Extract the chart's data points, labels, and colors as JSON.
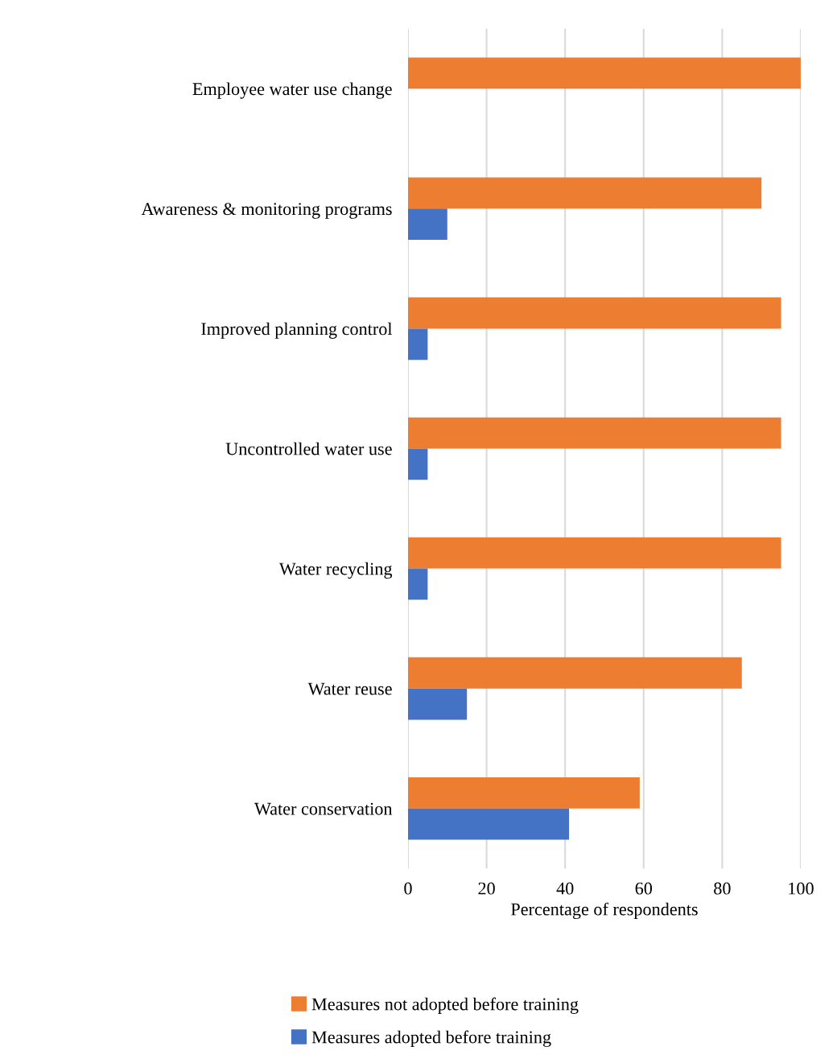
{
  "chart_data": {
    "type": "bar",
    "orientation": "horizontal",
    "xlabel": "Percentage of respondents",
    "categories": [
      "Employee water use change",
      "Awareness & monitoring programs",
      "Improved planning control",
      "Uncontrolled water use",
      "Water recycling",
      "Water reuse",
      "Water conservation"
    ],
    "series": [
      {
        "name": "Measures not adopted before training",
        "color": "#ed7d31",
        "values": [
          100,
          90,
          95,
          95,
          95,
          85,
          59
        ]
      },
      {
        "name": "Measures adopted before training",
        "color": "#4472c4",
        "values": [
          0,
          10,
          5,
          5,
          5,
          15,
          41
        ]
      }
    ],
    "xlim": [
      0,
      100
    ],
    "xticks": [
      0,
      20,
      40,
      60,
      80,
      100
    ],
    "grid": "x",
    "legend": "bottom"
  }
}
